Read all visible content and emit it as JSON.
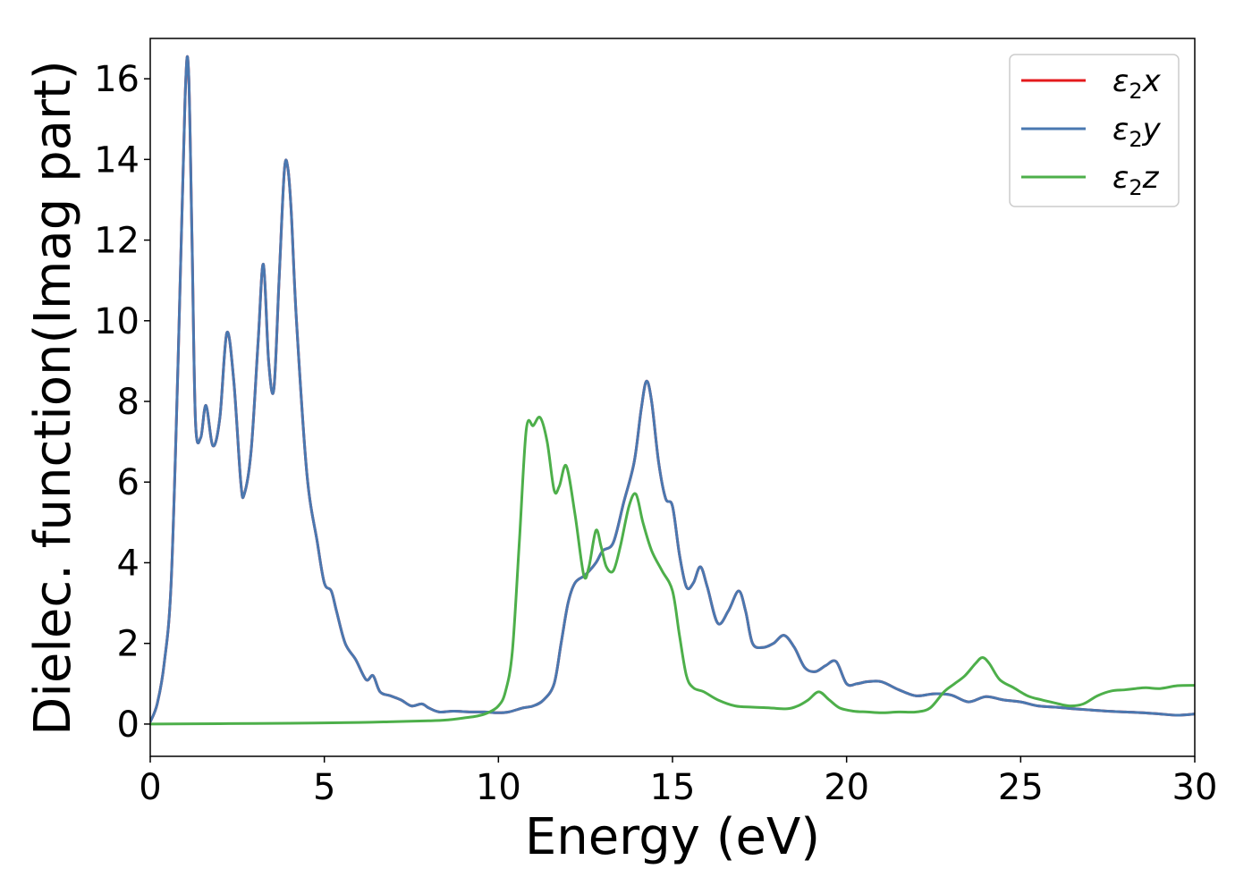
{
  "chart_data": {
    "type": "line",
    "xlabel": "Energy (eV)",
    "ylabel": "Dielec. function(Imag part)",
    "xlim": [
      0,
      30
    ],
    "ylim": [
      -0.8,
      17.0
    ],
    "xticks": [
      0,
      5,
      10,
      15,
      20,
      25,
      30
    ],
    "yticks": [
      0,
      2,
      4,
      6,
      8,
      10,
      12,
      14,
      16
    ],
    "grid": false,
    "legend_position": "top-right",
    "series": [
      {
        "name": "ε₂x",
        "legend_base": "ε",
        "legend_sub": "2",
        "legend_suffix": "x",
        "color": "#e41a1c",
        "x": [
          0,
          0.2,
          0.4,
          0.6,
          0.8,
          1.0,
          1.1,
          1.2,
          1.3,
          1.45,
          1.6,
          1.8,
          2.0,
          2.2,
          2.4,
          2.6,
          2.7,
          2.9,
          3.1,
          3.25,
          3.4,
          3.55,
          3.7,
          3.85,
          3.95,
          4.05,
          4.2,
          4.5,
          4.8,
          5.0,
          5.2,
          5.35,
          5.6,
          5.9,
          6.2,
          6.4,
          6.6,
          6.9,
          7.2,
          7.5,
          7.8,
          8.0,
          8.3,
          8.7,
          9.2,
          9.6,
          10.0,
          10.3,
          10.7,
          11.0,
          11.3,
          11.6,
          11.8,
          12.0,
          12.2,
          12.5,
          12.8,
          13.0,
          13.3,
          13.6,
          13.9,
          14.1,
          14.25,
          14.4,
          14.6,
          14.8,
          15.0,
          15.2,
          15.4,
          15.6,
          15.8,
          16.0,
          16.3,
          16.6,
          16.9,
          17.1,
          17.3,
          17.6,
          17.9,
          18.2,
          18.5,
          18.8,
          19.1,
          19.4,
          19.7,
          20.0,
          20.3,
          20.6,
          21.0,
          21.5,
          22.0,
          22.5,
          23.0,
          23.5,
          24.0,
          24.5,
          25.0,
          25.5,
          26.0,
          26.5,
          27.0,
          27.5,
          28.0,
          28.5,
          29.0,
          29.5,
          30.0
        ],
        "y": [
          0.05,
          0.5,
          1.5,
          3.5,
          9.0,
          15.5,
          16.2,
          12.0,
          7.5,
          7.1,
          7.9,
          6.9,
          7.6,
          9.7,
          8.5,
          6.0,
          5.7,
          6.8,
          9.5,
          11.4,
          9.0,
          8.3,
          11.0,
          13.7,
          13.8,
          12.7,
          10.0,
          6.2,
          4.5,
          3.5,
          3.3,
          2.8,
          2.0,
          1.6,
          1.1,
          1.2,
          0.8,
          0.7,
          0.6,
          0.45,
          0.5,
          0.4,
          0.3,
          0.32,
          0.3,
          0.3,
          0.28,
          0.3,
          0.4,
          0.45,
          0.6,
          1.0,
          2.0,
          3.0,
          3.5,
          3.7,
          4.0,
          4.3,
          4.5,
          5.5,
          6.5,
          7.8,
          8.5,
          8.0,
          6.5,
          5.6,
          5.4,
          4.2,
          3.4,
          3.5,
          3.9,
          3.4,
          2.5,
          2.8,
          3.3,
          2.8,
          2.0,
          1.9,
          2.0,
          2.2,
          1.9,
          1.4,
          1.3,
          1.45,
          1.55,
          1.0,
          1.0,
          1.05,
          1.05,
          0.85,
          0.7,
          0.75,
          0.72,
          0.55,
          0.68,
          0.6,
          0.55,
          0.45,
          0.42,
          0.38,
          0.35,
          0.32,
          0.3,
          0.28,
          0.25,
          0.22,
          0.25
        ]
      },
      {
        "name": "ε₂y",
        "legend_base": "ε",
        "legend_sub": "2",
        "legend_suffix": "y",
        "color": "#4a78b0",
        "x": [
          0,
          0.2,
          0.4,
          0.6,
          0.8,
          1.0,
          1.1,
          1.2,
          1.3,
          1.45,
          1.6,
          1.8,
          2.0,
          2.2,
          2.4,
          2.6,
          2.7,
          2.9,
          3.1,
          3.25,
          3.4,
          3.55,
          3.7,
          3.85,
          3.95,
          4.05,
          4.2,
          4.5,
          4.8,
          5.0,
          5.2,
          5.35,
          5.6,
          5.9,
          6.2,
          6.4,
          6.6,
          6.9,
          7.2,
          7.5,
          7.8,
          8.0,
          8.3,
          8.7,
          9.2,
          9.6,
          10.0,
          10.3,
          10.7,
          11.0,
          11.3,
          11.6,
          11.8,
          12.0,
          12.2,
          12.5,
          12.8,
          13.0,
          13.3,
          13.6,
          13.9,
          14.1,
          14.25,
          14.4,
          14.6,
          14.8,
          15.0,
          15.2,
          15.4,
          15.6,
          15.8,
          16.0,
          16.3,
          16.6,
          16.9,
          17.1,
          17.3,
          17.6,
          17.9,
          18.2,
          18.5,
          18.8,
          19.1,
          19.4,
          19.7,
          20.0,
          20.3,
          20.6,
          21.0,
          21.5,
          22.0,
          22.5,
          23.0,
          23.5,
          24.0,
          24.5,
          25.0,
          25.5,
          26.0,
          26.5,
          27.0,
          27.5,
          28.0,
          28.5,
          29.0,
          29.5,
          30.0
        ],
        "y": [
          0.05,
          0.5,
          1.5,
          3.5,
          9.0,
          15.5,
          16.2,
          12.0,
          7.5,
          7.1,
          7.9,
          6.9,
          7.6,
          9.7,
          8.5,
          6.0,
          5.7,
          6.8,
          9.5,
          11.4,
          9.0,
          8.3,
          11.0,
          13.7,
          13.8,
          12.7,
          10.0,
          6.2,
          4.5,
          3.5,
          3.3,
          2.8,
          2.0,
          1.6,
          1.1,
          1.2,
          0.8,
          0.7,
          0.6,
          0.45,
          0.5,
          0.4,
          0.3,
          0.32,
          0.3,
          0.3,
          0.28,
          0.3,
          0.4,
          0.45,
          0.6,
          1.0,
          2.0,
          3.0,
          3.5,
          3.7,
          4.0,
          4.3,
          4.5,
          5.5,
          6.5,
          7.8,
          8.5,
          8.0,
          6.5,
          5.6,
          5.4,
          4.2,
          3.4,
          3.5,
          3.9,
          3.4,
          2.5,
          2.8,
          3.3,
          2.8,
          2.0,
          1.9,
          2.0,
          2.2,
          1.9,
          1.4,
          1.3,
          1.45,
          1.55,
          1.0,
          1.0,
          1.05,
          1.05,
          0.85,
          0.7,
          0.75,
          0.72,
          0.55,
          0.68,
          0.6,
          0.55,
          0.45,
          0.42,
          0.38,
          0.35,
          0.32,
          0.3,
          0.28,
          0.25,
          0.22,
          0.25
        ]
      },
      {
        "name": "ε₂z",
        "legend_base": "ε",
        "legend_sub": "2",
        "legend_suffix": "z",
        "color": "#4daf4a",
        "x": [
          0,
          2,
          4,
          6,
          7,
          8,
          8.5,
          9,
          9.4,
          9.7,
          10.0,
          10.2,
          10.4,
          10.6,
          10.8,
          11.0,
          11.2,
          11.4,
          11.6,
          11.75,
          11.95,
          12.2,
          12.45,
          12.6,
          12.8,
          12.95,
          13.1,
          13.3,
          13.5,
          13.75,
          13.95,
          14.15,
          14.4,
          14.7,
          15.0,
          15.2,
          15.4,
          15.6,
          15.9,
          16.3,
          16.8,
          17.3,
          17.8,
          18.3,
          18.6,
          18.9,
          19.2,
          19.5,
          19.8,
          20.2,
          20.6,
          21.0,
          21.5,
          22.0,
          22.4,
          22.8,
          23.1,
          23.4,
          23.7,
          23.9,
          24.1,
          24.4,
          24.8,
          25.2,
          25.6,
          26.0,
          26.4,
          26.8,
          27.2,
          27.6,
          28.0,
          28.3,
          28.6,
          29.0,
          29.5,
          30.0
        ],
        "y": [
          0.0,
          0.01,
          0.02,
          0.04,
          0.06,
          0.08,
          0.1,
          0.15,
          0.2,
          0.28,
          0.45,
          0.8,
          1.8,
          4.5,
          7.3,
          7.4,
          7.6,
          7.0,
          5.8,
          5.9,
          6.4,
          5.2,
          3.7,
          3.9,
          4.8,
          4.4,
          3.9,
          3.8,
          4.4,
          5.4,
          5.7,
          5.0,
          4.3,
          3.8,
          3.3,
          2.2,
          1.2,
          0.9,
          0.8,
          0.6,
          0.45,
          0.42,
          0.4,
          0.38,
          0.45,
          0.6,
          0.8,
          0.6,
          0.4,
          0.32,
          0.3,
          0.28,
          0.3,
          0.3,
          0.4,
          0.8,
          1.0,
          1.2,
          1.5,
          1.65,
          1.5,
          1.1,
          0.9,
          0.7,
          0.6,
          0.52,
          0.45,
          0.5,
          0.7,
          0.82,
          0.85,
          0.88,
          0.9,
          0.88,
          0.95,
          0.96
        ]
      }
    ]
  }
}
